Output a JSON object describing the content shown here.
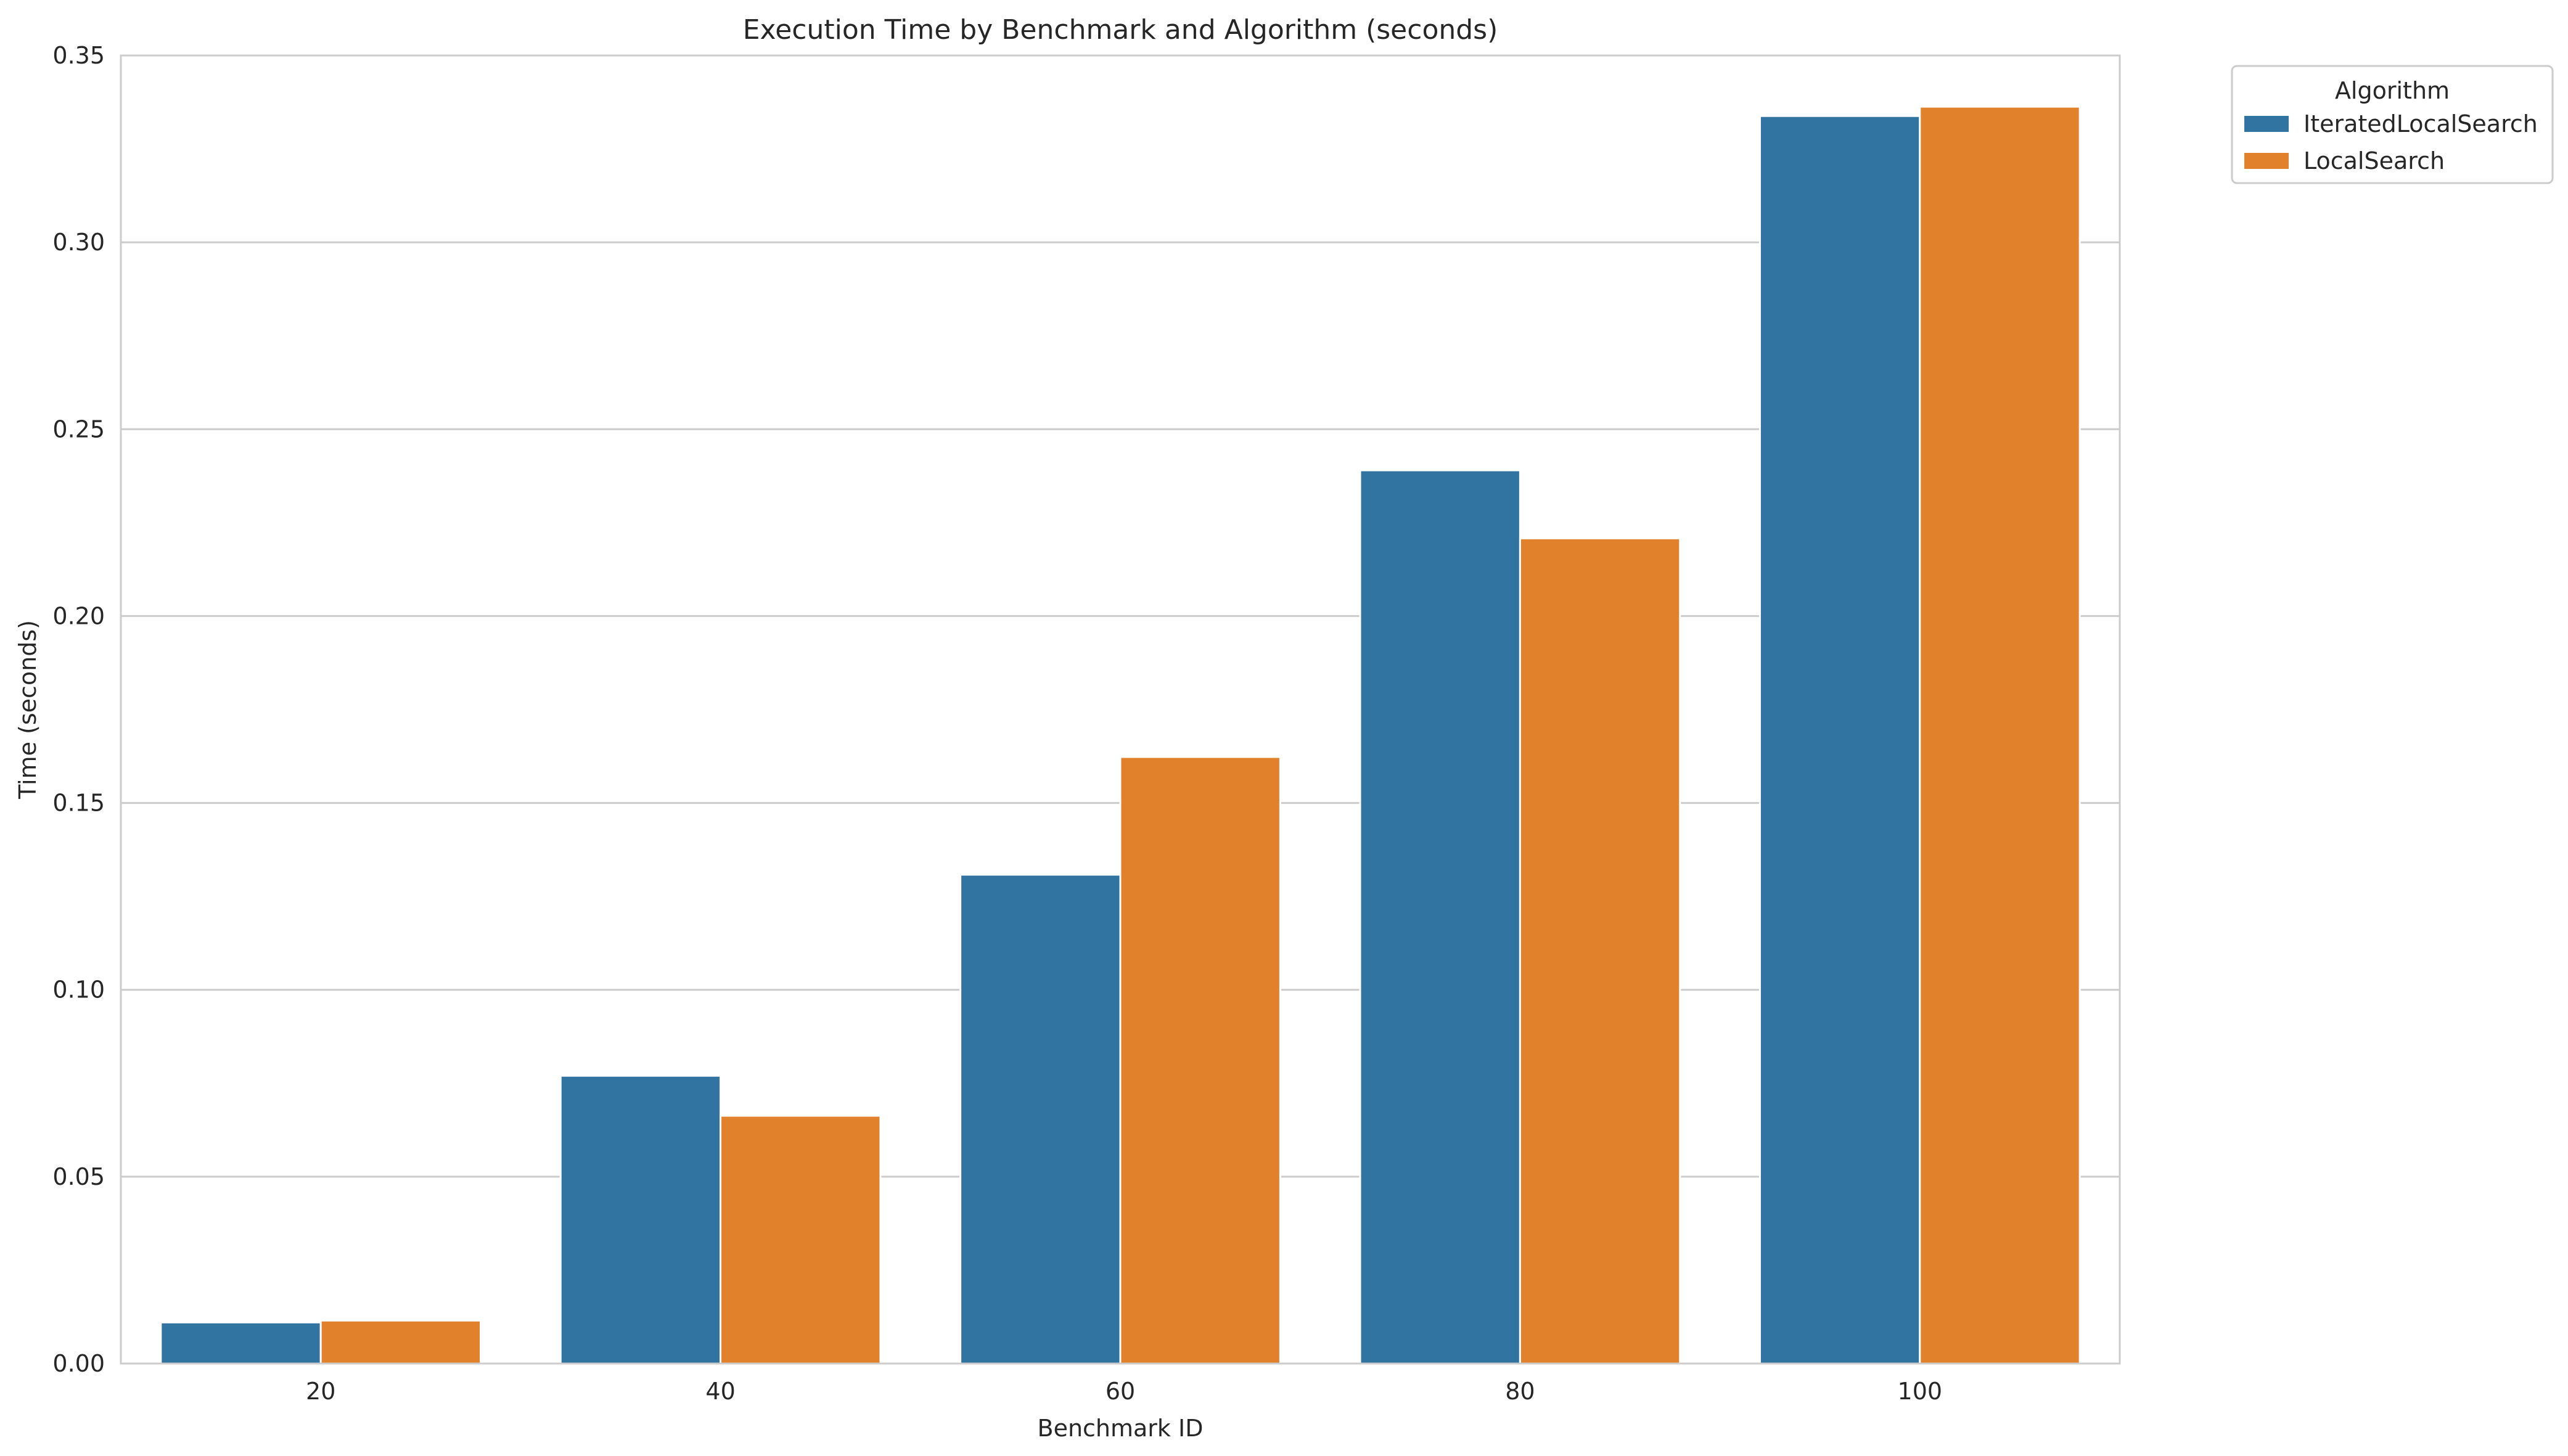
{
  "chart_data": {
    "type": "bar",
    "title": "Execution Time by Benchmark and Algorithm (seconds)",
    "xlabel": "Benchmark ID",
    "ylabel": "Time (seconds)",
    "categories": [
      "20",
      "40",
      "60",
      "80",
      "100"
    ],
    "series": [
      {
        "name": "IteratedLocalSearch",
        "color": "#3274a1",
        "values": [
          0.011,
          0.077,
          0.1308,
          0.239,
          0.3338
        ]
      },
      {
        "name": "LocalSearch",
        "color": "#e1812c",
        "values": [
          0.0115,
          0.0663,
          0.1623,
          0.2208,
          0.3363
        ]
      }
    ],
    "ylim": [
      0,
      0.35
    ],
    "yticks": [
      "0.00",
      "0.05",
      "0.10",
      "0.15",
      "0.20",
      "0.25",
      "0.30",
      "0.35"
    ],
    "grid": "horizontal",
    "legend": {
      "title": "Algorithm",
      "placement": "outside-top-right"
    }
  }
}
